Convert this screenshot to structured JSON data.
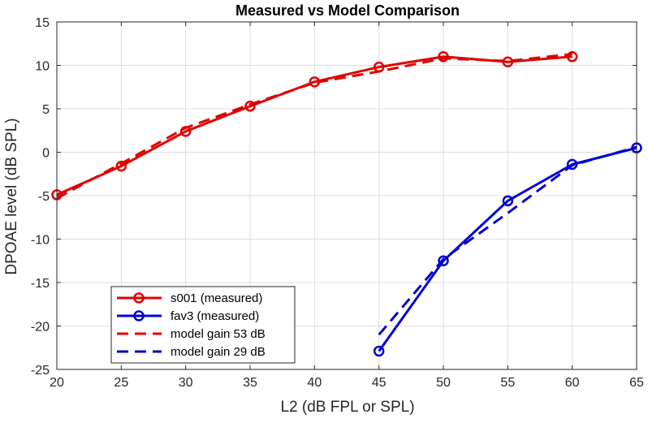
{
  "chart_data": {
    "type": "line",
    "title": "Measured vs Model Comparison",
    "xlabel": "L2 (dB FPL or SPL)",
    "ylabel": "DPOAE level (dB SPL)",
    "xlim": [
      20,
      65
    ],
    "ylim": [
      -25,
      15
    ],
    "xticks": [
      20,
      25,
      30,
      35,
      40,
      45,
      50,
      55,
      60,
      65
    ],
    "yticks": [
      -25,
      -20,
      -15,
      -10,
      -5,
      0,
      5,
      10,
      15
    ],
    "grid": true,
    "legend_position": "bottom-left",
    "series": [
      {
        "name": "s001 (measured)",
        "color": "#e00000",
        "style": "solid-circle",
        "x": [
          20,
          25,
          30,
          35,
          40,
          45,
          50,
          55,
          60
        ],
        "y": [
          -4.9,
          -1.6,
          2.4,
          5.3,
          8.1,
          9.8,
          11.0,
          10.4,
          11.0
        ]
      },
      {
        "name": "fav3 (measured)",
        "color": "#0000d0",
        "style": "solid-circle",
        "x": [
          45,
          50,
          55,
          60,
          65
        ],
        "y": [
          -22.9,
          -12.5,
          -5.6,
          -1.4,
          0.5
        ]
      },
      {
        "name": "model gain 53 dB",
        "color": "#e00000",
        "style": "dashed",
        "x": [
          20,
          25,
          30,
          35,
          40,
          45,
          50,
          55,
          60
        ],
        "y": [
          -5.3,
          -1.3,
          2.8,
          5.5,
          8.0,
          9.3,
          10.8,
          10.5,
          11.3
        ]
      },
      {
        "name": "model gain 29 dB",
        "color": "#0000d0",
        "style": "dashed",
        "x": [
          45,
          50,
          55,
          60,
          65
        ],
        "y": [
          -21.0,
          -12.3,
          -7.0,
          -1.5,
          0.6
        ]
      }
    ]
  }
}
